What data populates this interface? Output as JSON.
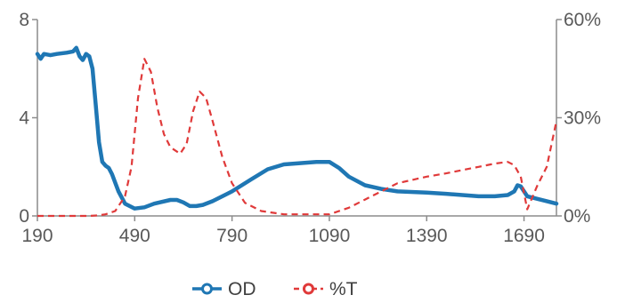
{
  "chart_data": {
    "type": "line",
    "title": "",
    "xlabel": "",
    "ylabel": "",
    "xlim": [
      190,
      1790
    ],
    "ylim_left": [
      0,
      8
    ],
    "ylim_right": [
      0,
      60
    ],
    "x_ticks": [
      "190",
      "490",
      "790",
      "1090",
      "1390",
      "1690"
    ],
    "y_left_ticks": [
      "0",
      "4",
      "8"
    ],
    "y_right_ticks": [
      "0%",
      "30%",
      "60%"
    ],
    "grid": false,
    "legend_position": "bottom-center",
    "series": [
      {
        "name": "OD",
        "axis": "left",
        "color": "#1f77b4",
        "style": "solid",
        "marker": "circle",
        "x": [
          190,
          200,
          210,
          230,
          250,
          280,
          300,
          310,
          320,
          330,
          340,
          350,
          360,
          370,
          380,
          390,
          400,
          410,
          420,
          440,
          460,
          490,
          520,
          550,
          600,
          620,
          640,
          660,
          680,
          700,
          730,
          790,
          850,
          900,
          950,
          1000,
          1050,
          1090,
          1120,
          1150,
          1200,
          1250,
          1300,
          1390,
          1450,
          1500,
          1550,
          1600,
          1640,
          1660,
          1670,
          1680,
          1690,
          1700,
          1730,
          1760,
          1790
        ],
        "y": [
          6.6,
          6.4,
          6.6,
          6.55,
          6.6,
          6.65,
          6.7,
          6.85,
          6.5,
          6.35,
          6.6,
          6.5,
          6.0,
          4.5,
          3.0,
          2.2,
          2.05,
          1.95,
          1.7,
          1.0,
          0.5,
          0.3,
          0.35,
          0.5,
          0.65,
          0.65,
          0.55,
          0.4,
          0.4,
          0.45,
          0.6,
          1.0,
          1.5,
          1.9,
          2.1,
          2.15,
          2.2,
          2.2,
          1.95,
          1.6,
          1.25,
          1.1,
          1.0,
          0.95,
          0.9,
          0.85,
          0.8,
          0.8,
          0.85,
          1.0,
          1.25,
          1.2,
          1.0,
          0.8,
          0.7,
          0.6,
          0.5
        ]
      },
      {
        "name": "%T",
        "axis": "right",
        "color": "#e03a3a",
        "style": "dashed",
        "marker": "circle",
        "x": [
          190,
          250,
          300,
          350,
          380,
          400,
          430,
          460,
          480,
          500,
          520,
          540,
          560,
          580,
          600,
          630,
          650,
          670,
          690,
          710,
          730,
          760,
          790,
          830,
          880,
          950,
          1000,
          1050,
          1090,
          1150,
          1200,
          1250,
          1300,
          1390,
          1450,
          1500,
          1550,
          1600,
          1640,
          1660,
          1680,
          1700,
          1730,
          1760,
          1790
        ],
        "y": [
          0,
          0,
          0,
          0,
          0.2,
          0.5,
          1.5,
          6,
          15,
          36,
          48,
          44,
          33,
          25,
          21,
          19,
          22,
          32,
          38,
          36,
          29,
          18,
          10,
          4,
          1.5,
          0.5,
          0.5,
          0.5,
          0.5,
          2.5,
          5,
          7.5,
          10,
          12,
          13,
          14,
          15,
          16,
          16.5,
          15.5,
          12,
          2,
          9,
          15,
          29
        ]
      }
    ]
  }
}
